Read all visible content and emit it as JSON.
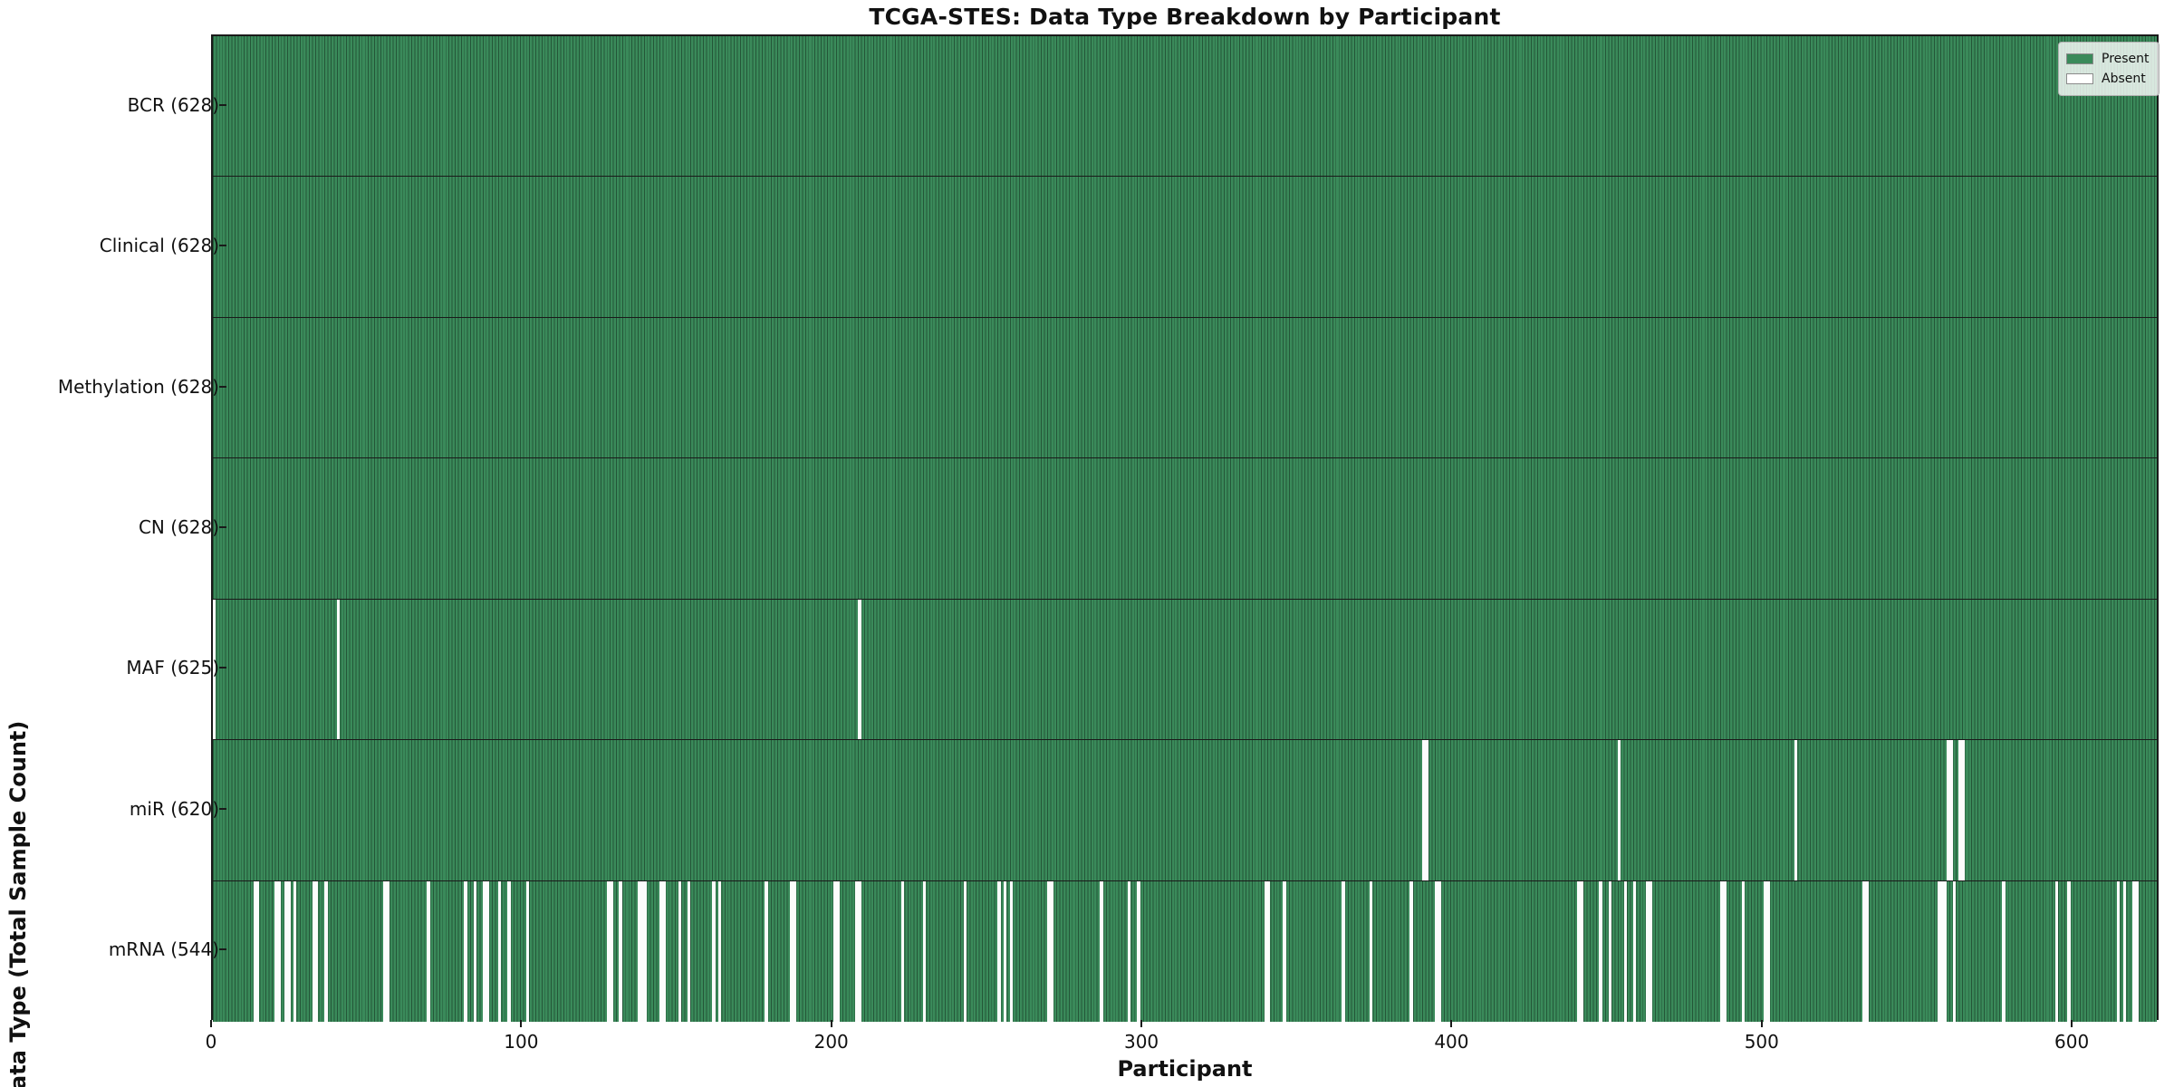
{
  "title": "TCGA-STES: Data Type Breakdown by Participant",
  "x_axis_label": "Participant",
  "y_axis_label": "Data Type (Total Sample Count)",
  "legend": {
    "entries": [
      {
        "label": "Present",
        "color": "#3a8a5a"
      },
      {
        "label": "Absent",
        "color": "#ffffff"
      }
    ],
    "position": "upper right"
  },
  "colors": {
    "present": "#3a8a5a",
    "absent": "#fcfcfc",
    "bar_edge": "rgba(0,0,0,0.38)",
    "frame": "#1a1a1a",
    "background": "#ffffff"
  },
  "chart_data": {
    "type": "heatmap",
    "title": "TCGA-STES: Data Type Breakdown by Participant",
    "xlabel": "Participant",
    "ylabel": "Data Type (Total Sample Count)",
    "xlim": [
      0,
      628
    ],
    "x_ticks": [
      0,
      100,
      200,
      300,
      400,
      500,
      600
    ],
    "n_participants": 628,
    "grid": false,
    "legend_position": "upper right",
    "value_encoding": {
      "present": 1,
      "absent": 0
    },
    "rows": [
      {
        "label": "BCR (628)",
        "data_type": "BCR",
        "present_count": 628,
        "absent_count": 0,
        "absent_participants": []
      },
      {
        "label": "Clinical (628)",
        "data_type": "Clinical",
        "present_count": 628,
        "absent_count": 0,
        "absent_participants": []
      },
      {
        "label": "Methylation (628)",
        "data_type": "Methylation",
        "present_count": 628,
        "absent_count": 0,
        "absent_participants": []
      },
      {
        "label": "CN (628)",
        "data_type": "CN",
        "present_count": 628,
        "absent_count": 0,
        "absent_participants": []
      },
      {
        "label": "MAF (625)",
        "data_type": "MAF",
        "present_count": 625,
        "absent_count": 3,
        "absent_participants": [
          0,
          40,
          208
        ]
      },
      {
        "label": "miR (620)",
        "data_type": "miR",
        "present_count": 620,
        "absent_count": 8,
        "absent_participants": [
          390,
          391,
          453,
          510,
          559,
          560,
          563,
          564
        ]
      },
      {
        "label": "mRNA (544)",
        "data_type": "mRNA",
        "present_count": 544,
        "absent_count": 84,
        "absent_participants": [
          13,
          14,
          20,
          21,
          23,
          24,
          26,
          32,
          33,
          36,
          55,
          56,
          69,
          81,
          84,
          87,
          88,
          92,
          95,
          101,
          127,
          128,
          131,
          137,
          138,
          139,
          144,
          145,
          150,
          153,
          161,
          163,
          178,
          186,
          187,
          200,
          201,
          207,
          208,
          222,
          229,
          242,
          253,
          255,
          257,
          269,
          270,
          286,
          295,
          298,
          339,
          340,
          345,
          364,
          373,
          386,
          394,
          395,
          440,
          441,
          447,
          450,
          455,
          458,
          462,
          463,
          486,
          487,
          493,
          500,
          501,
          532,
          533,
          556,
          557,
          558,
          561,
          577,
          594,
          598,
          614,
          616,
          619,
          620
        ]
      }
    ]
  }
}
